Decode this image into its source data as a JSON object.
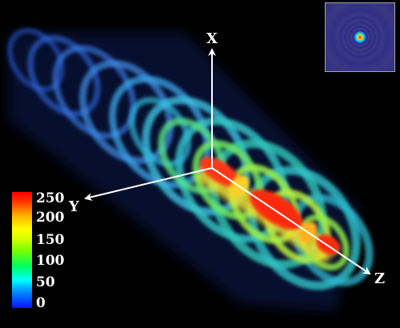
{
  "axes": {
    "x": "X",
    "y": "Y",
    "z": "Z"
  },
  "colorbar": {
    "ticks": [
      "250",
      "200",
      "150",
      "100",
      "50",
      "0"
    ],
    "min": 0,
    "max": 250,
    "colors": [
      "#0a10ff",
      "#00ffff",
      "#00ff60",
      "#ffff00",
      "#ff3000",
      "#ff0000"
    ]
  },
  "inset": {
    "icon": "cross-section-rings-icon"
  }
}
